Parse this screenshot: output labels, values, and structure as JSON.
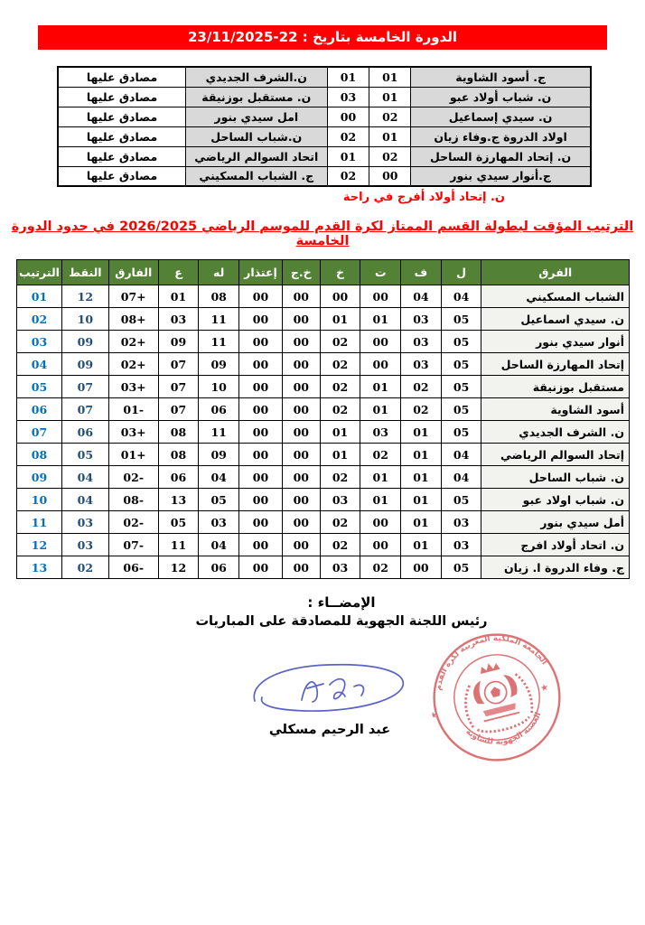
{
  "page": {
    "banner": "الدورة الخامسة بتاريخ : 22-23/11/2025",
    "rest_note": "ن. إتحاد أولاد أفرج في راحة",
    "standings_title": "الترتيب المؤقت لبطولة القسم الممتاز لكرة القدم للموسم الرياضي 2026/2025 في حدود الدورة الخامسة"
  },
  "results": {
    "matches": [
      {
        "home": "ج. أسود الشاوية",
        "home_score": "01",
        "away_score": "01",
        "away": "ن.الشرف الجديدي",
        "status": "مصادق عليها"
      },
      {
        "home": "ن. شباب أولاد عبو",
        "home_score": "01",
        "away_score": "03",
        "away": "ن. مستقبل بوزنيقة",
        "status": "مصادق عليها"
      },
      {
        "home": "ن. سيدي إسماعيل",
        "home_score": "02",
        "away_score": "00",
        "away": "امل سيدي بنور",
        "status": "مصادق عليها"
      },
      {
        "home": "اولاد الدروة ج.وفاء زيان",
        "home_score": "01",
        "away_score": "02",
        "away": "ن.شباب الساحل",
        "status": "مصادق عليها"
      },
      {
        "home": "ن. إتحاد المهارزة الساحل",
        "home_score": "02",
        "away_score": "01",
        "away": "اتحاد السوالم الرياضي",
        "status": "مصادق عليها"
      },
      {
        "home": "ج.أنوار سيدي بنور",
        "home_score": "00",
        "away_score": "02",
        "away": "ج. الشباب المسكيني",
        "status": "مصادق عليها"
      }
    ]
  },
  "standings": {
    "headers": [
      "الفرق",
      "ل",
      "ف",
      "ت",
      "خ",
      "خ.ج",
      "إعتذار",
      "له",
      "ع",
      "الفارق",
      "النقط",
      "الترتيب"
    ],
    "rows": [
      {
        "team": "الشباب المسكيني",
        "played": "04",
        "won": "04",
        "drawn": "00",
        "lost": "00",
        "lost_ff": "00",
        "excuse": "00",
        "gf": "08",
        "ga": "01",
        "diff": "+07",
        "points": "12",
        "rank": "01"
      },
      {
        "team": "ن. سيدي اسماعيل",
        "played": "05",
        "won": "03",
        "drawn": "01",
        "lost": "01",
        "lost_ff": "00",
        "excuse": "00",
        "gf": "11",
        "ga": "03",
        "diff": "+08",
        "points": "10",
        "rank": "02"
      },
      {
        "team": "أنوار سيدي بنور",
        "played": "05",
        "won": "03",
        "drawn": "00",
        "lost": "02",
        "lost_ff": "00",
        "excuse": "00",
        "gf": "11",
        "ga": "09",
        "diff": "+02",
        "points": "09",
        "rank": "03"
      },
      {
        "team": "إتحاد المهارزة الساحل",
        "played": "05",
        "won": "03",
        "drawn": "00",
        "lost": "02",
        "lost_ff": "00",
        "excuse": "00",
        "gf": "09",
        "ga": "07",
        "diff": "+02",
        "points": "09",
        "rank": "04"
      },
      {
        "team": "مستقبل بوزنيقة",
        "played": "05",
        "won": "02",
        "drawn": "01",
        "lost": "02",
        "lost_ff": "00",
        "excuse": "00",
        "gf": "10",
        "ga": "07",
        "diff": "+03",
        "points": "07",
        "rank": "05"
      },
      {
        "team": "أسود الشاوية",
        "played": "05",
        "won": "02",
        "drawn": "01",
        "lost": "02",
        "lost_ff": "00",
        "excuse": "00",
        "gf": "06",
        "ga": "07",
        "diff": "-01",
        "points": "07",
        "rank": "06"
      },
      {
        "team": "ن. الشرف الجديدي",
        "played": "05",
        "won": "01",
        "drawn": "03",
        "lost": "01",
        "lost_ff": "00",
        "excuse": "00",
        "gf": "11",
        "ga": "08",
        "diff": "+03",
        "points": "06",
        "rank": "07"
      },
      {
        "team": "إتحاد السوالم الرياضي",
        "played": "04",
        "won": "01",
        "drawn": "02",
        "lost": "01",
        "lost_ff": "00",
        "excuse": "00",
        "gf": "09",
        "ga": "08",
        "diff": "+01",
        "points": "05",
        "rank": "08"
      },
      {
        "team": "ن. شباب الساحل",
        "played": "04",
        "won": "01",
        "drawn": "01",
        "lost": "02",
        "lost_ff": "00",
        "excuse": "00",
        "gf": "04",
        "ga": "06",
        "diff": "-02",
        "points": "04",
        "rank": "09"
      },
      {
        "team": "ن. شباب اولاد عبو",
        "played": "05",
        "won": "01",
        "drawn": "01",
        "lost": "03",
        "lost_ff": "00",
        "excuse": "00",
        "gf": "05",
        "ga": "13",
        "diff": "-08",
        "points": "04",
        "rank": "10"
      },
      {
        "team": "أمل سيدي بنور",
        "played": "03",
        "won": "01",
        "drawn": "00",
        "lost": "02",
        "lost_ff": "00",
        "excuse": "00",
        "gf": "03",
        "ga": "05",
        "diff": "-02",
        "points": "03",
        "rank": "11"
      },
      {
        "team": "ن. اتحاد أولاد افرج",
        "played": "03",
        "won": "01",
        "drawn": "00",
        "lost": "02",
        "lost_ff": "00",
        "excuse": "00",
        "gf": "04",
        "ga": "11",
        "diff": "-07",
        "points": "03",
        "rank": "12"
      },
      {
        "team": "ج. وفاء الدروة ا. زيان",
        "played": "05",
        "won": "00",
        "drawn": "02",
        "lost": "03",
        "lost_ff": "00",
        "excuse": "00",
        "gf": "06",
        "ga": "12",
        "diff": "-06",
        "points": "02",
        "rank": "13"
      }
    ]
  },
  "footer": {
    "signature_label": "الإمضــاء :",
    "signer_title": "رئيس اللجنة الجهوية للمصادقة على المباريات",
    "signer_name": "عبد الرحيم مسكلي",
    "stamp_top_text": "الجامعة الملكية المغربية لكرة القدم",
    "stamp_bottom_text": "العصبة الجهوية للشاوية"
  },
  "colors": {
    "banner_red": "#FF0000",
    "header_green": "#538135",
    "rank_blue": "#0070C0",
    "points_navy": "#1F4E79",
    "team_cell_gray": "#D9D9D9",
    "standings_team_bg": "#F2F2EE",
    "stamp_red": "#D95F63",
    "signature_blue": "#5B63C5"
  }
}
